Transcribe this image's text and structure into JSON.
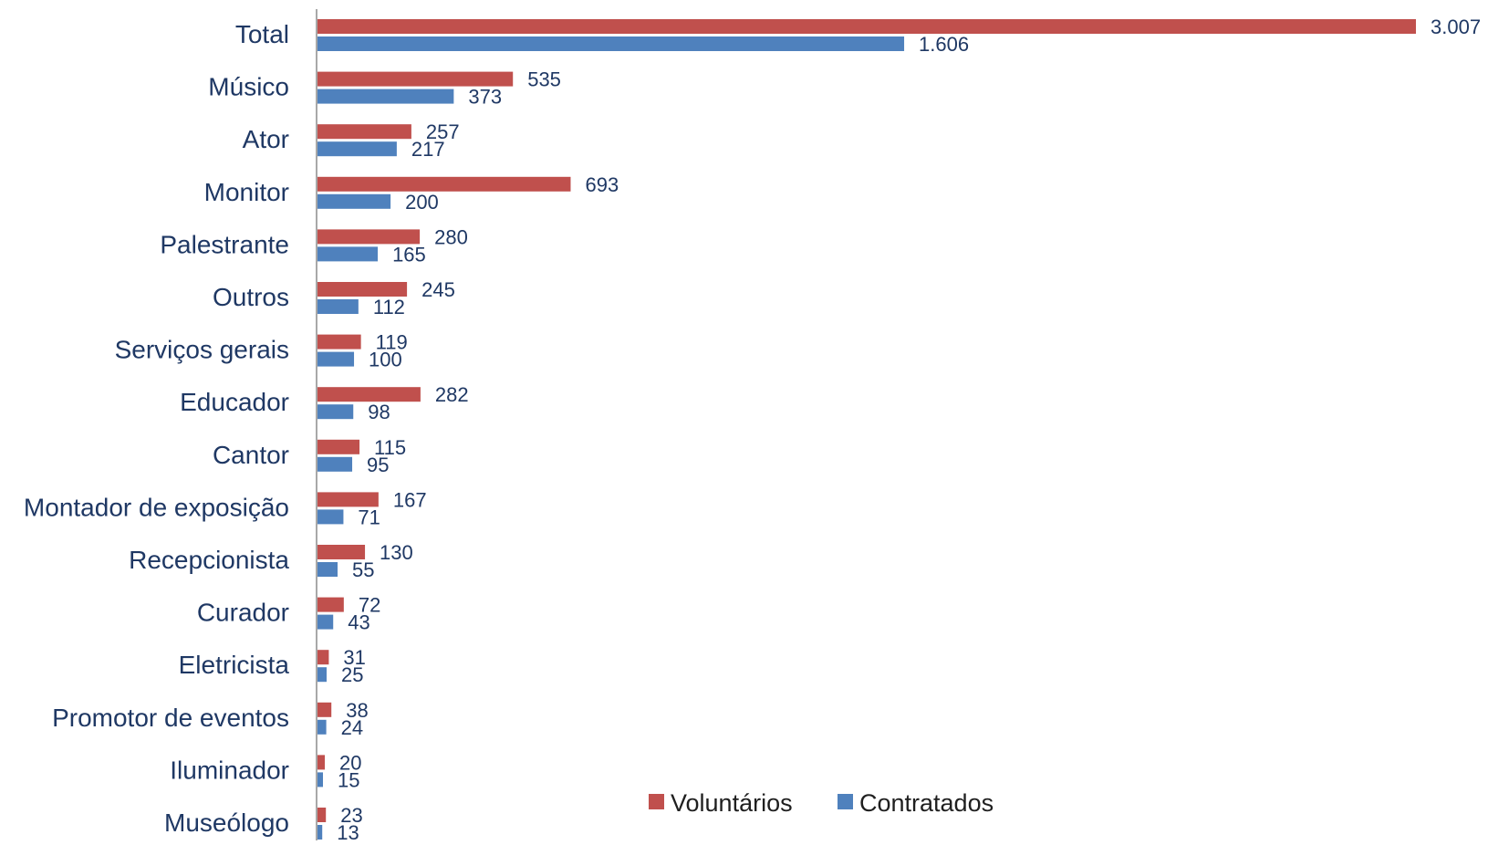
{
  "chart_data": {
    "type": "bar",
    "orientation": "horizontal",
    "title": "",
    "xlabel": "",
    "ylabel": "",
    "categories": [
      "Total",
      "Músico",
      "Ator",
      "Monitor",
      "Palestrante",
      "Outros",
      "Serviços gerais",
      "Educador",
      "Cantor",
      "Montador de exposição",
      "Recepcionista",
      "Curador",
      "Eletricista",
      "Promotor de eventos",
      "Iluminador",
      "Museólogo"
    ],
    "series": [
      {
        "name": "Voluntários",
        "color": "#c0504d",
        "values": [
          3007,
          535,
          257,
          693,
          280,
          245,
          119,
          282,
          115,
          167,
          130,
          72,
          31,
          38,
          20,
          23
        ],
        "labels": [
          "3.007",
          "535",
          "257",
          "693",
          "280",
          "245",
          "119",
          "282",
          "115",
          "167",
          "130",
          "72",
          "31",
          "38",
          "20",
          "23"
        ]
      },
      {
        "name": "Contratados",
        "color": "#4f81bd",
        "values": [
          1606,
          373,
          217,
          200,
          165,
          112,
          100,
          98,
          95,
          71,
          55,
          43,
          25,
          24,
          15,
          13
        ],
        "labels": [
          "1.606",
          "373",
          "217",
          "200",
          "165",
          "112",
          "100",
          "98",
          "95",
          "71",
          "55",
          "43",
          "25",
          "24",
          "15",
          "13"
        ]
      }
    ],
    "xlim": [
      0,
      3007
    ],
    "grid": false,
    "legend": "bottom-right"
  }
}
